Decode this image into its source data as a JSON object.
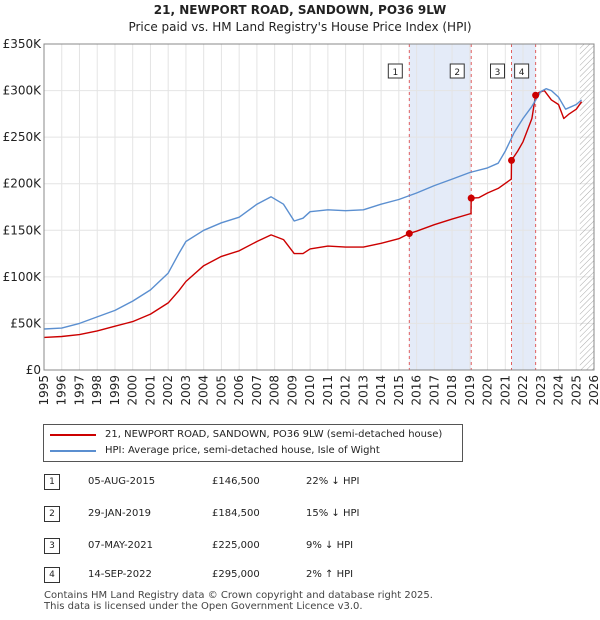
{
  "chart_data": {
    "type": "line",
    "title": "21, NEWPORT ROAD, SANDOWN, PO36 9LW",
    "subtitle": "Price paid vs. HM Land Registry's House Price Index (HPI)",
    "xlabel": "",
    "ylabel": "",
    "xlim": [
      1995,
      2026
    ],
    "ylim": [
      0,
      350000
    ],
    "x_ticks": [
      1995,
      1996,
      1997,
      1998,
      1999,
      2000,
      2001,
      2002,
      2003,
      2004,
      2005,
      2006,
      2007,
      2008,
      2009,
      2010,
      2011,
      2012,
      2013,
      2014,
      2015,
      2016,
      2017,
      2018,
      2019,
      2020,
      2021,
      2022,
      2023,
      2024,
      2025,
      2026
    ],
    "y_ticks": [
      0,
      50000,
      100000,
      150000,
      200000,
      250000,
      300000,
      350000
    ],
    "y_tick_labels": [
      "£0",
      "£50K",
      "£100K",
      "£150K",
      "£200K",
      "£250K",
      "£300K",
      "£350K"
    ],
    "grid": true,
    "shaded_periods": [
      [
        2015.59,
        2019.08
      ],
      [
        2021.35,
        2022.71
      ]
    ],
    "future_hatch_from": 2025.2,
    "series": [
      {
        "name": "21, NEWPORT ROAD, SANDOWN, PO36 9LW (semi-detached house)",
        "color": "#cc0000",
        "x": [
          1995,
          1996,
          1997,
          1998,
          1999,
          2000,
          2001,
          2002,
          2002.6,
          2003,
          2004,
          2005,
          2006,
          2007,
          2007.8,
          2008.5,
          2009.1,
          2009.6,
          2010,
          2011,
          2012,
          2013,
          2014,
          2015,
          2015.59,
          2016,
          2017,
          2018,
          2019.07,
          2019.08,
          2019.5,
          2020,
          2020.6,
          2021.34,
          2021.35,
          2021.7,
          2022,
          2022.5,
          2022.71,
          2022.9,
          2023.2,
          2023.6,
          2024,
          2024.3,
          2024.6,
          2025,
          2025.3
        ],
        "values": [
          35000,
          36000,
          38000,
          42000,
          47000,
          52000,
          60000,
          72000,
          85000,
          95000,
          112000,
          122000,
          128000,
          138000,
          145000,
          140000,
          125000,
          125000,
          130000,
          133000,
          132000,
          132000,
          136000,
          141000,
          146500,
          149000,
          156000,
          162000,
          168000,
          184500,
          185000,
          190000,
          195000,
          205000,
          225000,
          235000,
          245000,
          270000,
          295000,
          298000,
          300000,
          290000,
          285000,
          270000,
          275000,
          280000,
          288000
        ]
      },
      {
        "name": "HPI: Average price, semi-detached house, Isle of Wight",
        "color": "#5b8fd0",
        "x": [
          1995,
          1996,
          1997,
          1998,
          1999,
          2000,
          2001,
          2002,
          2002.6,
          2003,
          2004,
          2005,
          2006,
          2007,
          2007.8,
          2008.5,
          2009.1,
          2009.6,
          2010,
          2011,
          2012,
          2013,
          2014,
          2015,
          2016,
          2017,
          2018,
          2019,
          2020,
          2020.6,
          2021,
          2021.5,
          2022,
          2022.5,
          2023,
          2023.3,
          2023.6,
          2024,
          2024.4,
          2025,
          2025.3
        ],
        "values": [
          44000,
          45000,
          50000,
          57000,
          64000,
          74000,
          86000,
          104000,
          125000,
          138000,
          150000,
          158000,
          164000,
          178000,
          186000,
          178000,
          160000,
          163000,
          170000,
          172000,
          171000,
          172000,
          178000,
          183000,
          190000,
          198000,
          205000,
          212000,
          217000,
          222000,
          235000,
          255000,
          270000,
          283000,
          299000,
          302000,
          300000,
          293000,
          280000,
          285000,
          290000
        ]
      }
    ]
  },
  "legend": {
    "items": [
      {
        "label": "21, NEWPORT ROAD, SANDOWN, PO36 9LW (semi-detached house)",
        "color": "#cc0000"
      },
      {
        "label": "HPI: Average price, semi-detached house, Isle of Wight",
        "color": "#5b8fd0"
      }
    ]
  },
  "sales": [
    {
      "num": "1",
      "date": "05-AUG-2015",
      "price": "£146,500",
      "hpi": "22% ↓ HPI",
      "x": 2015.59,
      "value": 146500
    },
    {
      "num": "2",
      "date": "29-JAN-2019",
      "price": "£184,500",
      "hpi": "15% ↓ HPI",
      "x": 2019.08,
      "value": 184500
    },
    {
      "num": "3",
      "date": "07-MAY-2021",
      "price": "£225,000",
      "hpi": "9% ↓ HPI",
      "x": 2021.35,
      "value": 225000
    },
    {
      "num": "4",
      "date": "14-SEP-2022",
      "price": "£295,000",
      "hpi": "2% ↑ HPI",
      "x": 2022.71,
      "value": 295000
    }
  ],
  "footer": {
    "line1": "Contains HM Land Registry data © Crown copyright and database right 2025.",
    "line2": "This data is licensed under the Open Government Licence v3.0."
  }
}
